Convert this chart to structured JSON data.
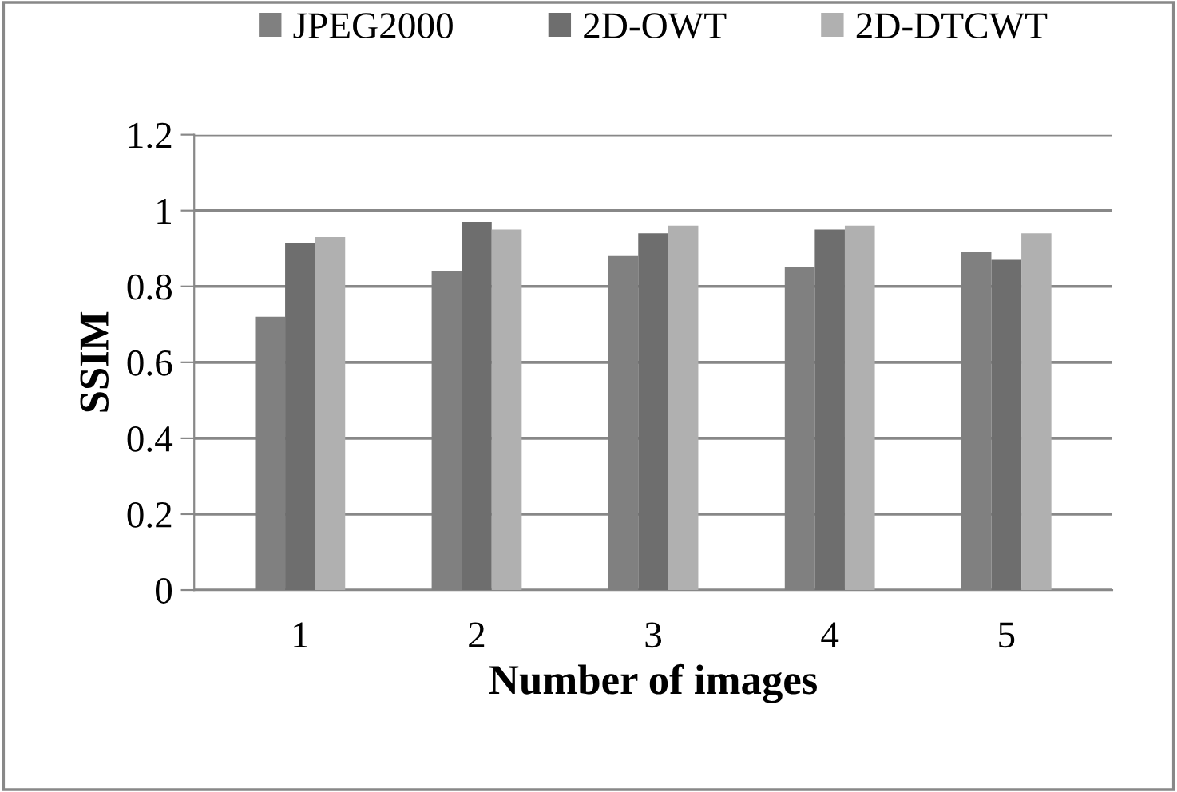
{
  "chart_data": {
    "type": "bar",
    "xlabel": "Number of images",
    "ylabel": "SSIM",
    "categories": [
      "1",
      "2",
      "3",
      "4",
      "5"
    ],
    "series": [
      {
        "name": "JPEG2000",
        "color": "#808080",
        "values": [
          0.72,
          0.84,
          0.88,
          0.85,
          0.89
        ]
      },
      {
        "name": "2D-OWT",
        "color": "#6e6e6e",
        "values": [
          0.915,
          0.97,
          0.94,
          0.95,
          0.87
        ]
      },
      {
        "name": "2D-DTCWT",
        "color": "#b0b0b0",
        "values": [
          0.93,
          0.95,
          0.96,
          0.96,
          0.94
        ]
      }
    ],
    "ylim": [
      0,
      1.2
    ],
    "yticks": [
      0,
      0.2,
      0.4,
      0.6,
      0.8,
      1,
      1.2
    ],
    "grid": "y",
    "legend": "top"
  }
}
